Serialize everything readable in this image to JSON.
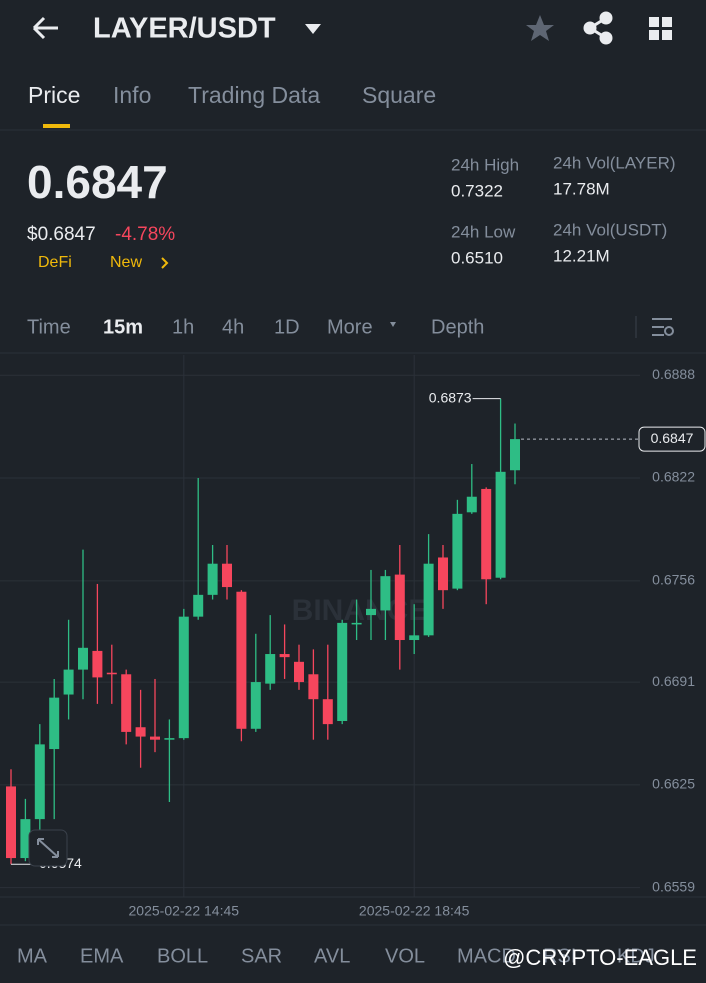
{
  "header": {
    "title": "LAYER/USDT"
  },
  "tabs": [
    "Price",
    "Info",
    "Trading Data",
    "Square"
  ],
  "summary": {
    "price": "0.6847",
    "usd_price": "$0.6847",
    "change": "-4.78%",
    "tags": [
      "DeFi",
      "New"
    ]
  },
  "stats": [
    {
      "label": "24h High",
      "value": "0.7322"
    },
    {
      "label": "24h Vol(LAYER)",
      "value": "17.78M"
    },
    {
      "label": "24h Low",
      "value": "0.6510"
    },
    {
      "label": "24h Vol(USDT)",
      "value": "12.21M"
    }
  ],
  "timeframes": [
    "Time",
    "15m",
    "1h",
    "4h",
    "1D",
    "More",
    "Depth"
  ],
  "indicators": [
    "MA",
    "EMA",
    "BOLL",
    "SAR",
    "AVL",
    "VOL",
    "MACD",
    "RSI",
    "KDJ"
  ],
  "watermark": "@CRYPTO-EAGLE",
  "chart_data": {
    "type": "candlestick",
    "watermark": "BINANCE",
    "categories": [
      null,
      null,
      null,
      null,
      null,
      null,
      null,
      null,
      null,
      null,
      null,
      null,
      "2025-02-22 14:45",
      null,
      null,
      null,
      null,
      null,
      null,
      null,
      null,
      null,
      null,
      null,
      null,
      null,
      null,
      null,
      "2025-02-22 18:45",
      null,
      null,
      null,
      null,
      null,
      null,
      null
    ],
    "open": [
      0.6624,
      0.6578,
      0.6603,
      0.6648,
      0.6683,
      0.6699,
      0.6711,
      0.6697,
      0.6696,
      0.6662,
      0.6656,
      0.6654,
      0.6655,
      0.6733,
      0.6747,
      0.6767,
      0.6749,
      0.6661,
      0.669,
      0.6709,
      0.6704,
      0.6696,
      0.668,
      0.6666,
      0.6728,
      0.6734,
      0.6737,
      0.676,
      0.6718,
      0.6721,
      0.6771,
      0.6751,
      0.68,
      0.6815,
      0.6758,
      0.6827
    ],
    "high": [
      0.6635,
      0.6616,
      0.6664,
      0.6693,
      0.6731,
      0.6776,
      0.6754,
      0.6715,
      0.6699,
      0.6686,
      0.6693,
      0.6667,
      0.6738,
      0.6822,
      0.6779,
      0.6779,
      0.675,
      0.6722,
      0.6734,
      0.6728,
      0.6715,
      0.6712,
      0.6715,
      0.6731,
      0.6744,
      0.6763,
      0.6763,
      0.6779,
      0.6741,
      0.6786,
      0.6779,
      0.6808,
      0.6831,
      0.6816,
      0.6873,
      0.6857
    ],
    "low": [
      0.6574,
      0.6576,
      0.6596,
      0.6603,
      0.6667,
      0.668,
      0.6677,
      0.6677,
      0.6651,
      0.6636,
      0.6646,
      0.6614,
      0.6654,
      0.6731,
      0.6744,
      0.6744,
      0.6653,
      0.6659,
      0.6686,
      0.6693,
      0.6686,
      0.6654,
      0.6654,
      0.6664,
      0.6718,
      0.6718,
      0.6718,
      0.6699,
      0.6709,
      0.672,
      0.6738,
      0.675,
      0.6799,
      0.6741,
      0.6757,
      0.6818
    ],
    "close": [
      0.6578,
      0.6603,
      0.6651,
      0.6681,
      0.6699,
      0.6713,
      0.6694,
      0.6696,
      0.6659,
      0.6656,
      0.6654,
      0.6655,
      0.6733,
      0.6747,
      0.6767,
      0.6752,
      0.6661,
      0.6691,
      0.6709,
      0.6707,
      0.6691,
      0.668,
      0.6664,
      0.6729,
      0.6729,
      0.6738,
      0.6759,
      0.6718,
      0.6721,
      0.6767,
      0.675,
      0.6799,
      0.681,
      0.6757,
      0.6826,
      0.6847
    ],
    "up_color": "#2ebd85",
    "down_color": "#f6465d",
    "ylim": [
      0.6553,
      0.6901
    ],
    "yticks": [
      0.6559,
      0.6625,
      0.6691,
      0.6756,
      0.6822,
      0.6888
    ],
    "grid": true
  }
}
